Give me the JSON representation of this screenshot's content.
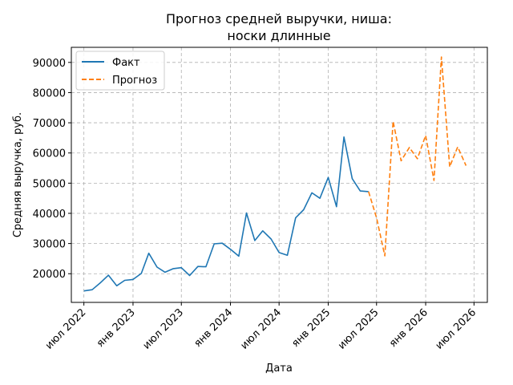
{
  "chart_data": {
    "type": "line",
    "title_line1": "Прогноз средней выручки, ниша:",
    "title_line2": "носки длинные",
    "xlabel": "Дата",
    "ylabel": "Средняя выручка, руб.",
    "x_range": [
      "2022-05-15",
      "2026-08-20"
    ],
    "ylim": [
      10500,
      95000
    ],
    "grid": true,
    "grid_style": "dashed",
    "legend_position": "top-left",
    "x_ticks": [
      {
        "date": "2022-07-01",
        "label": "июл 2022"
      },
      {
        "date": "2023-01-01",
        "label": "янв 2023"
      },
      {
        "date": "2023-07-01",
        "label": "июл 2023"
      },
      {
        "date": "2024-01-01",
        "label": "янв 2024"
      },
      {
        "date": "2024-07-01",
        "label": "июл 2024"
      },
      {
        "date": "2025-01-01",
        "label": "янв 2025"
      },
      {
        "date": "2025-07-01",
        "label": "июл 2025"
      },
      {
        "date": "2026-01-01",
        "label": "янв 2026"
      },
      {
        "date": "2026-07-01",
        "label": "июл 2026"
      }
    ],
    "y_ticks": [
      {
        "value": 20000,
        "label": "20000"
      },
      {
        "value": 30000,
        "label": "30000"
      },
      {
        "value": 40000,
        "label": "40000"
      },
      {
        "value": 50000,
        "label": "50000"
      },
      {
        "value": 60000,
        "label": "60000"
      },
      {
        "value": 70000,
        "label": "70000"
      },
      {
        "value": 80000,
        "label": "80000"
      },
      {
        "value": 90000,
        "label": "90000"
      }
    ],
    "series": [
      {
        "name": "Факт",
        "color": "#1f77b4",
        "dash": "solid",
        "points": [
          {
            "x": "2022-07-01",
            "y": 14300
          },
          {
            "x": "2022-08-01",
            "y": 14700
          },
          {
            "x": "2022-09-01",
            "y": 17000
          },
          {
            "x": "2022-10-01",
            "y": 19500
          },
          {
            "x": "2022-11-01",
            "y": 16000
          },
          {
            "x": "2022-12-01",
            "y": 17800
          },
          {
            "x": "2023-01-01",
            "y": 18100
          },
          {
            "x": "2023-02-01",
            "y": 20100
          },
          {
            "x": "2023-03-01",
            "y": 26800
          },
          {
            "x": "2023-04-01",
            "y": 22200
          },
          {
            "x": "2023-05-01",
            "y": 20500
          },
          {
            "x": "2023-06-01",
            "y": 21700
          },
          {
            "x": "2023-07-01",
            "y": 22000
          },
          {
            "x": "2023-08-01",
            "y": 19400
          },
          {
            "x": "2023-09-01",
            "y": 22400
          },
          {
            "x": "2023-10-01",
            "y": 22300
          },
          {
            "x": "2023-11-01",
            "y": 29900
          },
          {
            "x": "2023-12-01",
            "y": 30100
          },
          {
            "x": "2024-01-01",
            "y": 28100
          },
          {
            "x": "2024-02-01",
            "y": 25800
          },
          {
            "x": "2024-03-01",
            "y": 40100
          },
          {
            "x": "2024-04-01",
            "y": 31000
          },
          {
            "x": "2024-05-01",
            "y": 34200
          },
          {
            "x": "2024-06-01",
            "y": 31500
          },
          {
            "x": "2024-07-01",
            "y": 27000
          },
          {
            "x": "2024-08-01",
            "y": 26100
          },
          {
            "x": "2024-09-01",
            "y": 38500
          },
          {
            "x": "2024-10-01",
            "y": 41200
          },
          {
            "x": "2024-11-01",
            "y": 46800
          },
          {
            "x": "2024-12-01",
            "y": 45000
          },
          {
            "x": "2025-01-01",
            "y": 51900
          },
          {
            "x": "2025-02-01",
            "y": 42200
          },
          {
            "x": "2025-03-01",
            "y": 65300
          },
          {
            "x": "2025-04-01",
            "y": 51500
          },
          {
            "x": "2025-05-01",
            "y": 47400
          },
          {
            "x": "2025-06-01",
            "y": 47200
          }
        ]
      },
      {
        "name": "Прогноз",
        "color": "#ff7f0e",
        "dash": "dashed",
        "points": [
          {
            "x": "2025-06-01",
            "y": 47200
          },
          {
            "x": "2025-07-01",
            "y": 38500
          },
          {
            "x": "2025-08-01",
            "y": 25900
          },
          {
            "x": "2025-09-01",
            "y": 70500
          },
          {
            "x": "2025-10-01",
            "y": 57400
          },
          {
            "x": "2025-11-01",
            "y": 61800
          },
          {
            "x": "2025-12-01",
            "y": 58100
          },
          {
            "x": "2026-01-01",
            "y": 65800
          },
          {
            "x": "2026-02-01",
            "y": 50900
          },
          {
            "x": "2026-03-01",
            "y": 91800
          },
          {
            "x": "2026-04-01",
            "y": 55400
          },
          {
            "x": "2026-05-01",
            "y": 62000
          },
          {
            "x": "2026-06-01",
            "y": 55800
          }
        ]
      }
    ]
  }
}
